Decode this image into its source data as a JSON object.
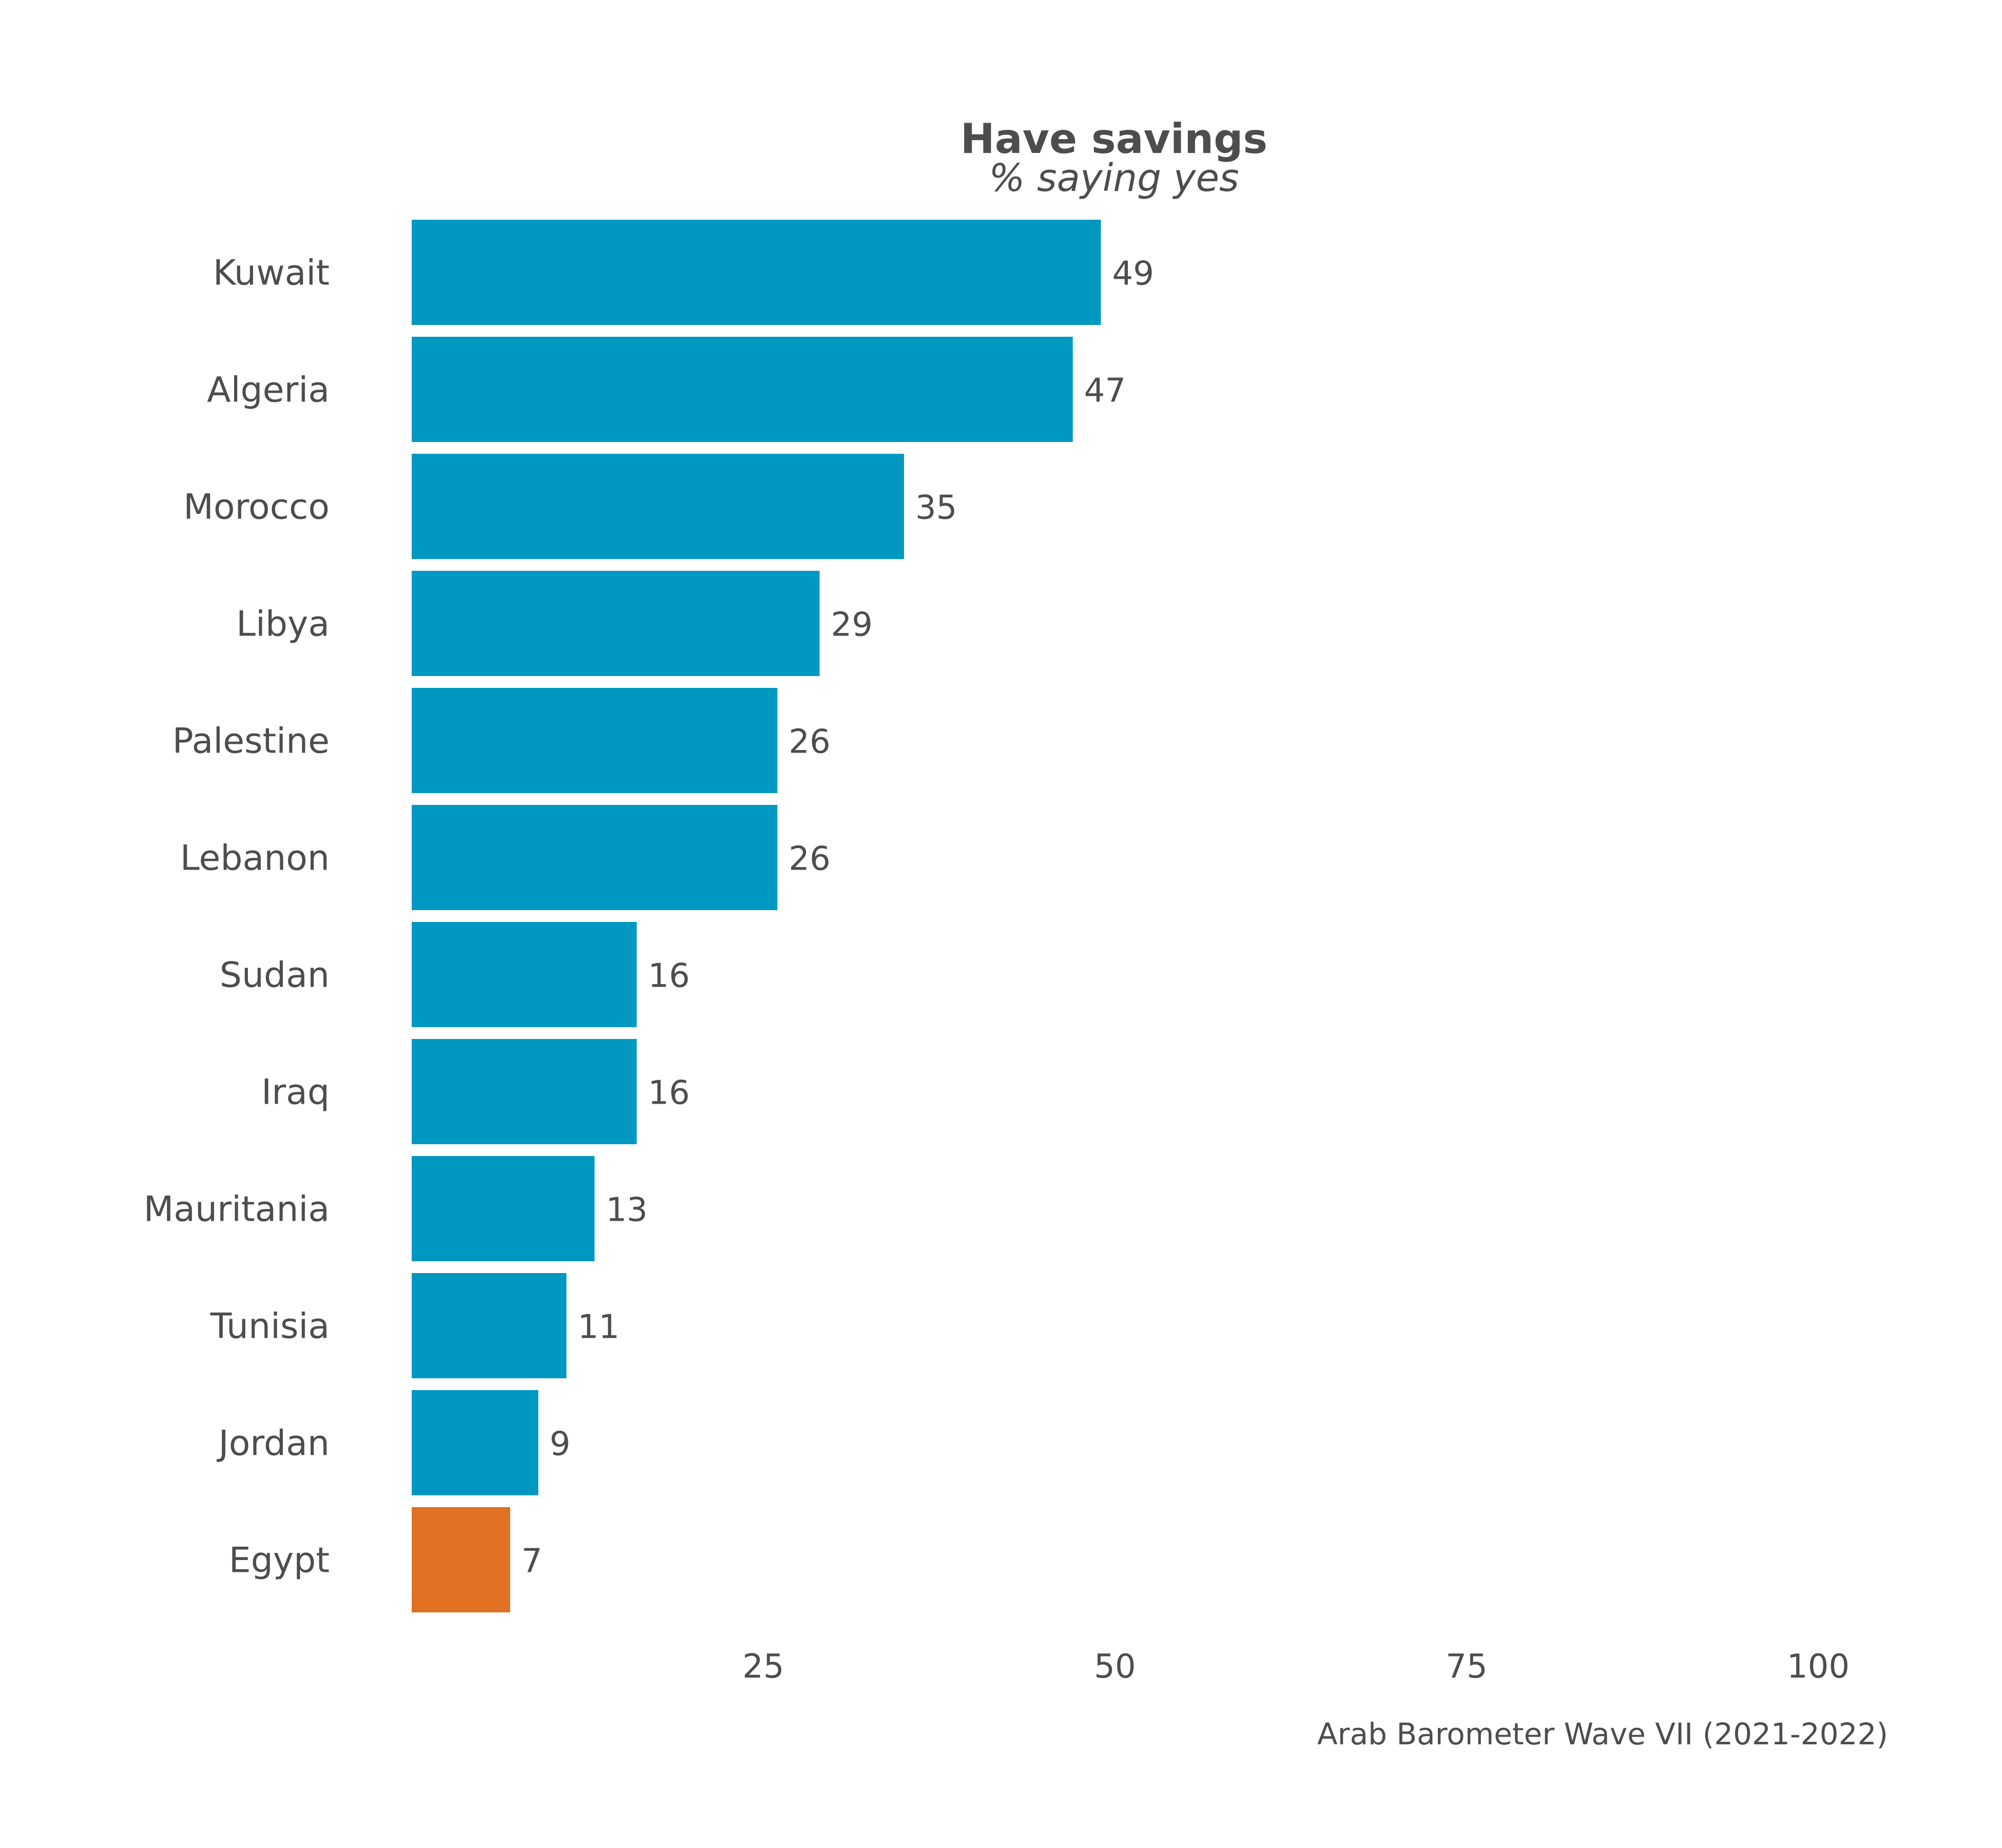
{
  "chart_data": {
    "type": "bar",
    "orientation": "horizontal",
    "title": "Have savings",
    "subtitle": "% saying yes",
    "caption": "Arab Barometer Wave VII (2021-2022)",
    "categories": [
      "Kuwait",
      "Algeria",
      "Morocco",
      "Libya",
      "Palestine",
      "Lebanon",
      "Sudan",
      "Iraq",
      "Mauritania",
      "Tunisia",
      "Jordan",
      "Egypt"
    ],
    "values": [
      49,
      47,
      35,
      29,
      26,
      26,
      16,
      16,
      13,
      11,
      9,
      7
    ],
    "highlight": "Egypt",
    "xlim": [
      0,
      100
    ],
    "xticks": [
      25,
      50,
      75,
      100
    ],
    "grid": false,
    "colors": {
      "bar": "#0098c0",
      "highlight": "#e07022",
      "text": "#4d4d4d"
    }
  }
}
